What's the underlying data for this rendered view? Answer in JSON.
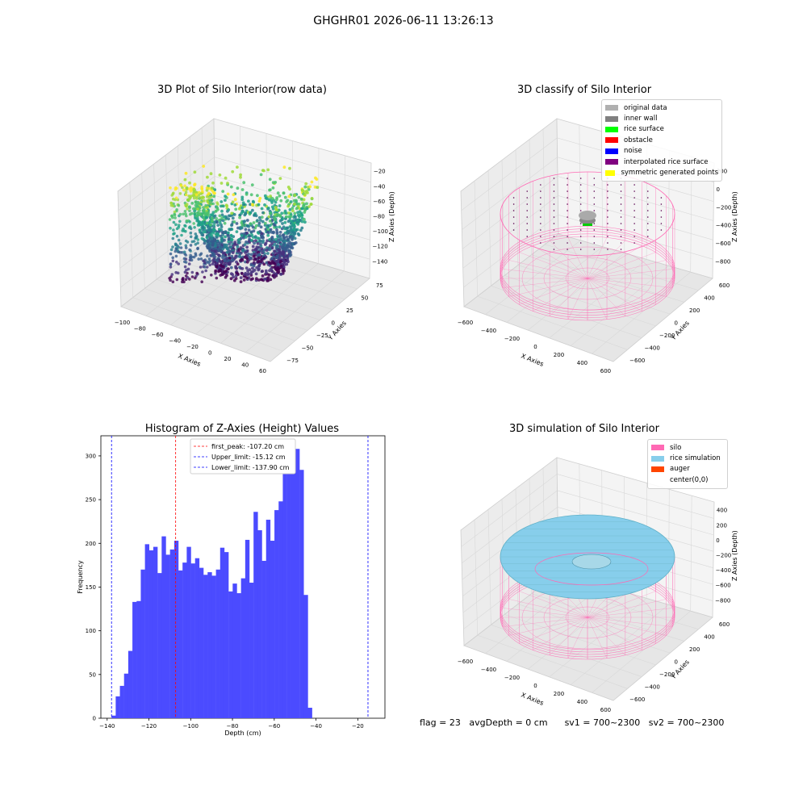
{
  "suptitle": "GHGHR01 2026-06-11 13:26:13",
  "panels": {
    "p1": {
      "title": "3D Plot of Silo Interior(row data)",
      "xlabel": "X Axies",
      "ylabel": "Y Axies",
      "zlabel": "Z Axies (Depth)",
      "xticks": [
        "−100",
        "−80",
        "−60",
        "−40",
        "−20",
        "0",
        "20",
        "40",
        "60"
      ],
      "yticks": [
        "75",
        "50",
        "25",
        "0",
        "−25",
        "−50",
        "−75"
      ],
      "zticks": [
        "−20",
        "−40",
        "−60",
        "−80",
        "−100",
        "−120",
        "−140"
      ],
      "colormap": "viridis"
    },
    "p2": {
      "title": "3D classify of Silo Interior",
      "xlabel": "X Axies",
      "ylabel": "Y Axies",
      "zlabel": "Z Axies (Depth)",
      "xticks": [
        "−600",
        "−400",
        "−200",
        "0",
        "200",
        "400",
        "600"
      ],
      "yticks": [
        "600",
        "400",
        "200",
        "0",
        "−200",
        "−400",
        "−600"
      ],
      "zticks": [
        "200",
        "0",
        "−200",
        "−400",
        "−600",
        "−800"
      ],
      "legend": [
        {
          "label": "original data",
          "color": "#b0b0b0"
        },
        {
          "label": "inner wall",
          "color": "#808080"
        },
        {
          "label": "rice surface",
          "color": "#00ff00"
        },
        {
          "label": "obstacle",
          "color": "#ff0000"
        },
        {
          "label": "noise",
          "color": "#0000ff"
        },
        {
          "label": "interpolated rice surface",
          "color": "#800080"
        },
        {
          "label": "symmetric generated points",
          "color": "#ffff00"
        }
      ],
      "wire_color": "#ff69b4"
    },
    "p3": {
      "title": "Histogram of Z-Axies (Height) Values",
      "legend": [
        {
          "label": "first_peak: -107.20 cm",
          "color": "#ff0000"
        },
        {
          "label": "Upper_limit: -15.12 cm",
          "color": "#0000ff"
        },
        {
          "label": "Lower_limit: -137.90 cm",
          "color": "#0000ff"
        }
      ]
    },
    "p4": {
      "title": "3D simulation of Silo Interior",
      "xlabel": "X Axies",
      "ylabel": "Y Axies",
      "zlabel": "Z Axies (Depth)",
      "xticks": [
        "−600",
        "−400",
        "−200",
        "0",
        "200",
        "400",
        "600"
      ],
      "yticks": [
        "600",
        "400",
        "200",
        "0",
        "−200",
        "−400",
        "−600"
      ],
      "zticks": [
        "400",
        "200",
        "0",
        "−200",
        "−400",
        "−600",
        "−800"
      ],
      "legend": [
        {
          "label": "silo",
          "color": "#ff69b4"
        },
        {
          "label": "rice simulation",
          "color": "#87ceeb"
        },
        {
          "label": "auger",
          "color": "#ff4500"
        },
        {
          "label": "center(0,0)",
          "color": "#ffffff"
        }
      ],
      "surface_color": "#87ceeb",
      "wire_color": "#ff69b4"
    }
  },
  "footer": {
    "flag": "flag = 23",
    "avg": "avgDepth = 0 cm",
    "sv1": "sv1 = 700~2300",
    "sv2": "sv2 = 700~2300"
  },
  "chart_data": {
    "type": "bar",
    "title": "Histogram of Z-Axies (Height) Values",
    "xlabel": "Depth (cm)",
    "ylabel": "Frequency",
    "xlim": [
      -143,
      -7
    ],
    "ylim": [
      0,
      323
    ],
    "xticks": [
      -140,
      -120,
      -100,
      -80,
      -60,
      -40,
      -20
    ],
    "xtick_labels": [
      "−140",
      "−120",
      "−100",
      "−80",
      "−60",
      "−40",
      "−20"
    ],
    "yticks": [
      0,
      50,
      100,
      150,
      200,
      250,
      300
    ],
    "bin_start": -137.9,
    "bin_width": 2.0,
    "values": [
      3,
      25,
      37,
      51,
      77,
      133,
      134,
      170,
      199,
      192,
      196,
      166,
      208,
      187,
      193,
      203,
      169,
      178,
      196,
      177,
      183,
      172,
      164,
      167,
      163,
      170,
      195,
      190,
      145,
      154,
      143,
      160,
      204,
      155,
      236,
      215,
      180,
      227,
      203,
      238,
      248,
      281,
      294,
      296,
      308,
      284,
      141,
      12
    ],
    "bar_color": "#4b4bff",
    "vlines": [
      {
        "name": "first_peak: -107.20 cm",
        "x": -107.2,
        "color": "#ff0000"
      },
      {
        "name": "Upper_limit: -15.12 cm",
        "x": -15.12,
        "color": "#0000ff"
      },
      {
        "name": "Lower_limit: -137.90 cm",
        "x": -137.9,
        "color": "#0000ff"
      }
    ]
  }
}
